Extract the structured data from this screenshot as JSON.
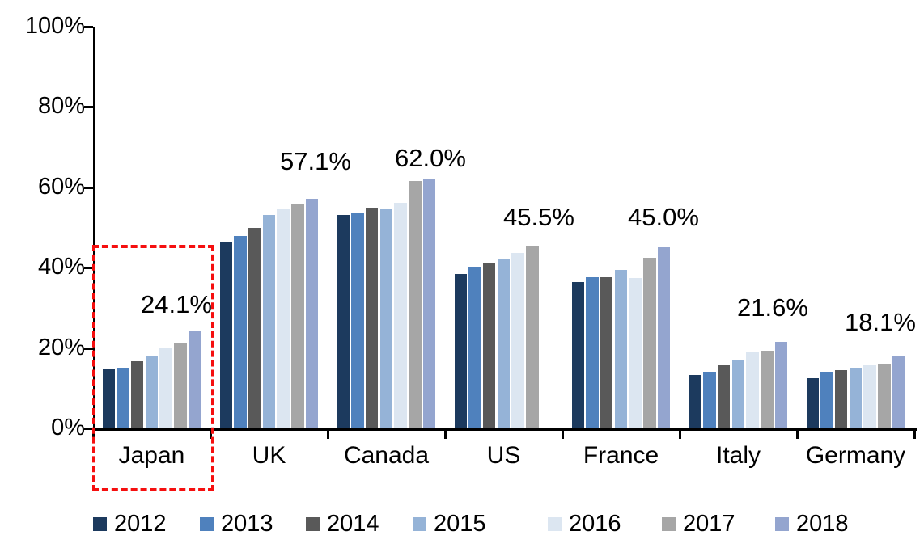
{
  "chart_data": {
    "type": "bar",
    "title": "",
    "xlabel": "",
    "ylabel": "",
    "categories": [
      "Japan",
      "UK",
      "Canada",
      "US",
      "France",
      "Italy",
      "Germany"
    ],
    "series": [
      {
        "name": "2012",
        "color": "#1C3A5E",
        "values": [
          14.9,
          46.3,
          53.1,
          38.4,
          36.5,
          13.3,
          12.5
        ]
      },
      {
        "name": "2013",
        "color": "#4F81BD",
        "values": [
          15.1,
          47.8,
          53.5,
          40.2,
          37.7,
          14.1,
          14.1
        ]
      },
      {
        "name": "2014",
        "color": "#595959",
        "values": [
          16.8,
          49.9,
          55.0,
          41.1,
          37.7,
          15.6,
          14.5
        ]
      },
      {
        "name": "2015",
        "color": "#95B3D7",
        "values": [
          18.1,
          53.2,
          54.7,
          42.2,
          39.4,
          17.0,
          15.1
        ]
      },
      {
        "name": "2016",
        "color": "#DCE6F1",
        "values": [
          19.9,
          54.8,
          56.1,
          43.7,
          37.4,
          19.1,
          15.6
        ]
      },
      {
        "name": "2017",
        "color": "#A6A6A6",
        "values": [
          21.2,
          55.8,
          61.6,
          45.5,
          42.5,
          19.3,
          15.9
        ]
      },
      {
        "name": "2018",
        "color": "#94A5CF",
        "values": [
          24.1,
          57.1,
          62.0,
          null,
          45.0,
          21.6,
          18.1
        ]
      }
    ],
    "annotations": [
      {
        "category": "Japan",
        "label": "24.1%"
      },
      {
        "category": "UK",
        "label": "57.1%"
      },
      {
        "category": "Canada",
        "label": "62.0%"
      },
      {
        "category": "US",
        "label": "45.5%"
      },
      {
        "category": "France",
        "label": "45.0%"
      },
      {
        "category": "Italy",
        "label": "21.6%"
      },
      {
        "category": "Germany",
        "label": "18.1%"
      }
    ],
    "y_axis": {
      "min": 0,
      "max": 100,
      "tick_labels": [
        "100%",
        "80%",
        "60%",
        "40%",
        "20%",
        "0%"
      ],
      "grid": false
    },
    "legend": {
      "position": "bottom",
      "entries": [
        "2012",
        "2013",
        "2014",
        "2015",
        "2016",
        "2017",
        "2018"
      ]
    },
    "highlight": {
      "category": "Japan",
      "style": "red-dashed-box",
      "color": "#f50f0f"
    }
  }
}
